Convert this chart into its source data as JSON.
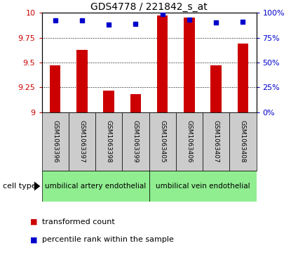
{
  "title": "GDS4778 / 221842_s_at",
  "samples": [
    "GSM1063396",
    "GSM1063397",
    "GSM1063398",
    "GSM1063399",
    "GSM1063405",
    "GSM1063406",
    "GSM1063407",
    "GSM1063408"
  ],
  "red_values": [
    9.47,
    9.63,
    9.22,
    9.18,
    9.97,
    9.95,
    9.47,
    9.69
  ],
  "blue_values": [
    92,
    92,
    88,
    89,
    99,
    93,
    90,
    91
  ],
  "ylim_left": [
    9,
    10
  ],
  "ylim_right": [
    0,
    100
  ],
  "yticks_left": [
    9,
    9.25,
    9.5,
    9.75,
    10
  ],
  "yticks_right": [
    0,
    25,
    50,
    75,
    100
  ],
  "ytick_labels_right": [
    "0%",
    "25%",
    "50%",
    "75%",
    "100%"
  ],
  "bar_color": "#cc0000",
  "dot_color": "#0000cc",
  "cell_type_groups": [
    {
      "label": "umbilical artery endothelial",
      "start": 0,
      "end": 4,
      "color": "#90ee90"
    },
    {
      "label": "umbilical vein endothelial",
      "start": 4,
      "end": 8,
      "color": "#90ee90"
    }
  ],
  "cell_type_label": "cell type",
  "legend_red": "transformed count",
  "legend_blue": "percentile rank within the sample",
  "bar_color_hex": "#cc0000",
  "dot_color_hex": "#0000cc",
  "tick_label_color_left": "#cc0000",
  "tick_label_color_right": "#0000cc",
  "bar_width": 0.4,
  "sample_bg_color": "#cccccc",
  "group_bg_color": "#90ee90"
}
